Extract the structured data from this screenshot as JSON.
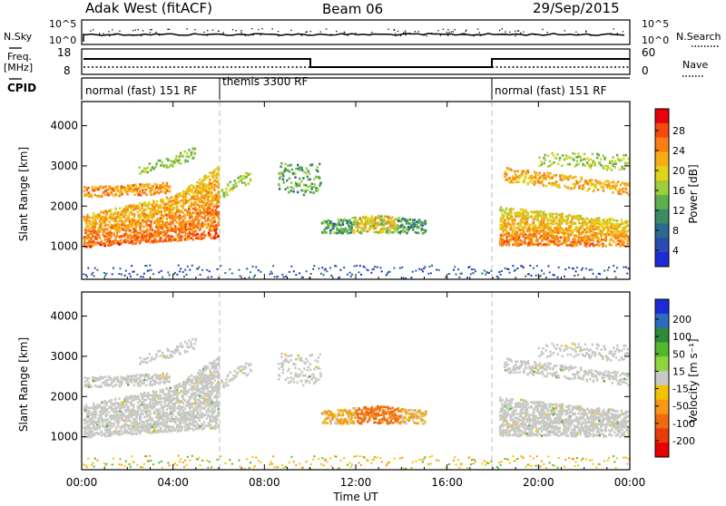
{
  "header": {
    "station": "Adak West (fitACF)",
    "beam": "Beam 06",
    "date": "29/Sep/2015"
  },
  "left_labels": {
    "nsky": "N.Sky",
    "freq_line1": "Freq.",
    "freq_line2": "[MHz]",
    "cpid": "CPID"
  },
  "right_labels": {
    "nsearch": "N.Search",
    "nave": "Nave"
  },
  "noise_axis": {
    "left_ticks": [
      "10^5",
      "10^0"
    ],
    "right_ticks": [
      "10^5",
      "10^0"
    ]
  },
  "freq_axis": {
    "left_ticks": [
      "18",
      "8"
    ],
    "right_ticks": [
      "60",
      "0"
    ]
  },
  "cpid_segments": [
    {
      "label": "normal (fast) 151 RF",
      "start": 0,
      "end": 6
    },
    {
      "label": "themis 3300 RF",
      "start": 6,
      "end": 18
    },
    {
      "label": "normal (fast) 151 RF",
      "start": 18,
      "end": 24
    }
  ],
  "power_colorbar": {
    "title": "Power [dB]",
    "ticks": [
      "28",
      "24",
      "20",
      "16",
      "12",
      "8",
      "4"
    ],
    "colors": [
      "#e8000b",
      "#f5490f",
      "#f97f13",
      "#f6ad14",
      "#e2d21c",
      "#9ccf3c",
      "#5fae4e",
      "#3b8c64",
      "#2b6a8c",
      "#2a4bb0",
      "#1c2bd5"
    ]
  },
  "velocity_colorbar": {
    "title": "Velocity [m s⁻¹]",
    "ticks": [
      "200",
      "100",
      "50",
      "15",
      "-15",
      "-50",
      "-100",
      "-200"
    ],
    "colors": [
      "#1c2bd5",
      "#2f6cc0",
      "#2d8a3a",
      "#55b52f",
      "#8ed63e",
      "#c8c8c4",
      "#f2c200",
      "#f59a12",
      "#f06a10",
      "#e83a0a",
      "#e60006"
    ]
  },
  "chart_data": [
    {
      "type": "heatmap",
      "name": "power",
      "ylabel": "Slant Range [km]",
      "y_ticks": [
        1000,
        2000,
        3000,
        4000
      ],
      "ylim": [
        180,
        4600
      ],
      "xlim": [
        0,
        24
      ],
      "colorbar_label": "Power [dB]",
      "colorbar_range": [
        0,
        30
      ]
    },
    {
      "type": "heatmap",
      "name": "velocity",
      "ylabel": "Slant Range [km]",
      "y_ticks": [
        1000,
        2000,
        3000,
        4000
      ],
      "ylim": [
        180,
        4600
      ],
      "xlim": [
        0,
        24
      ],
      "colorbar_label": "Velocity [m s⁻¹]",
      "colorbar_range": [
        -200,
        200
      ]
    }
  ],
  "x_axis": {
    "ticks": [
      "00:00",
      "04:00",
      "08:00",
      "12:00",
      "16:00",
      "20:00",
      "00:00"
    ],
    "label": "Time UT"
  }
}
